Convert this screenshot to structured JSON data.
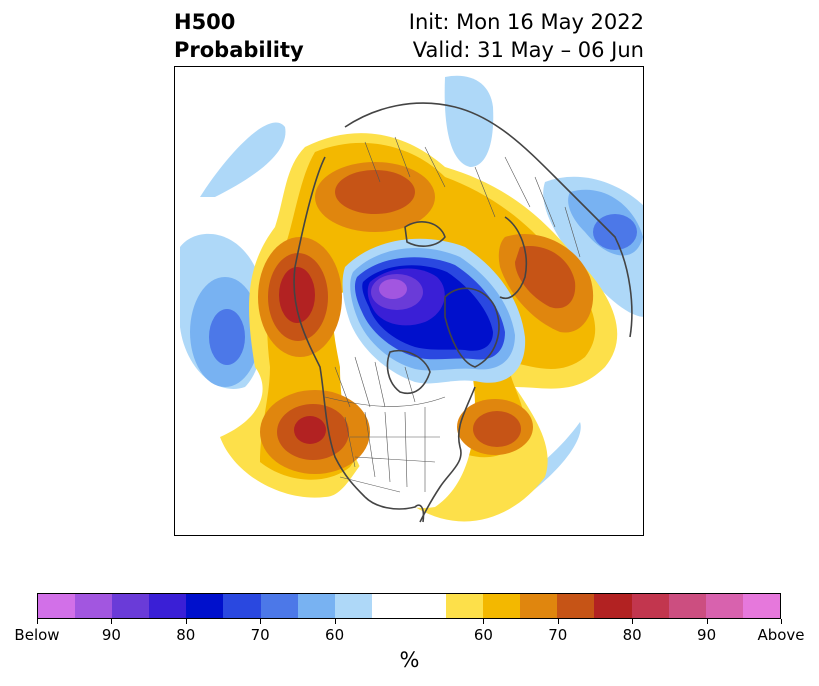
{
  "title": {
    "left_line1": "H500",
    "left_line2": "Probability",
    "right_line1": "Init: Mon 16 May 2022",
    "right_line2": "Valid: 31 May – 06 Jun"
  },
  "colorbar": {
    "unit": "%",
    "colors": [
      "#d270e8",
      "#a256e0",
      "#6a3bd8",
      "#3a1fd6",
      "#0010cc",
      "#2a48e0",
      "#4c78e8",
      "#78b2f2",
      "#aed8f8",
      "#ffffff",
      "#ffffff",
      "#fde04a",
      "#f3b800",
      "#e0860e",
      "#c65416",
      "#b22222",
      "#c2364e",
      "#cc4e80",
      "#d862ae",
      "#e678dc"
    ],
    "tick_labels": [
      "Below",
      "90",
      "80",
      "70",
      "60",
      "60",
      "70",
      "80",
      "90",
      "Above"
    ]
  },
  "map": {
    "anomalies": [
      {
        "sign": "below",
        "peak": 80,
        "region": "Arctic / Canadian Archipelago"
      },
      {
        "sign": "above",
        "peak": 80,
        "region": "Alaska / NE Pacific coast"
      },
      {
        "sign": "above",
        "peak": 80,
        "region": "Western United States / Mexico"
      },
      {
        "sign": "above",
        "peak": 70,
        "region": "NW Atlantic / Newfoundland"
      },
      {
        "sign": "above",
        "peak": 70,
        "region": "Siberia / NE Asia"
      },
      {
        "sign": "below",
        "peak": 70,
        "region": "Central North Pacific"
      },
      {
        "sign": "below",
        "peak": 70,
        "region": "Europe / Barents Sea"
      }
    ]
  }
}
